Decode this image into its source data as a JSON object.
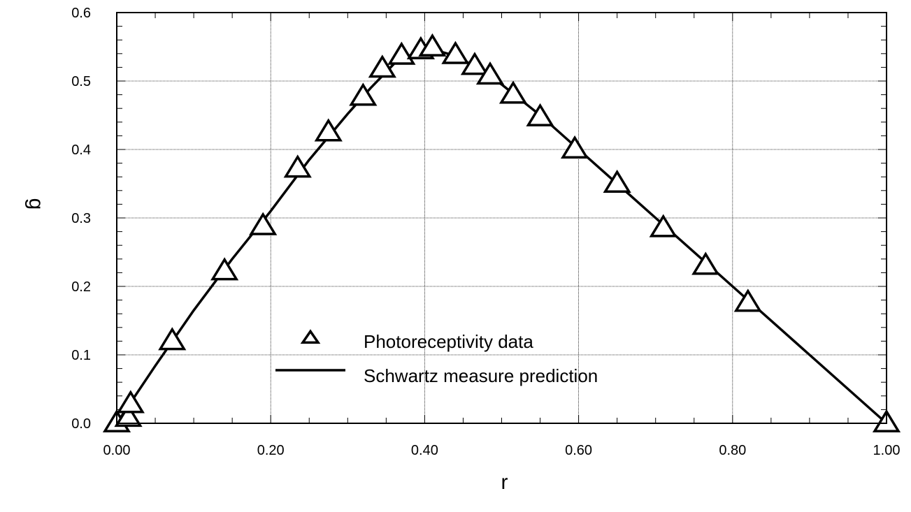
{
  "chart_data": {
    "type": "line",
    "title": "",
    "xlabel": "r",
    "ylabel": "g",
    "xlim": [
      0,
      1.0
    ],
    "ylim": [
      0,
      0.6
    ],
    "grid": true,
    "legend_position": "center-left",
    "x_ticks": [
      "0.00",
      "0.20",
      "0.40",
      "0.60",
      "0.80",
      "1.00"
    ],
    "y_ticks": [
      "0.0",
      "0.1",
      "0.2",
      "0.3",
      "0.4",
      "0.5",
      "0.6"
    ],
    "series": [
      {
        "name": "Photoreceptivity data",
        "kind": "scatter",
        "marker": "triangle-open",
        "color": "#000000",
        "points": [
          [
            0.0,
            0.0
          ],
          [
            0.015,
            0.008
          ],
          [
            0.018,
            0.028
          ],
          [
            0.072,
            0.12
          ],
          [
            0.14,
            0.222
          ],
          [
            0.19,
            0.288
          ],
          [
            0.235,
            0.372
          ],
          [
            0.275,
            0.425
          ],
          [
            0.32,
            0.477
          ],
          [
            0.345,
            0.518
          ],
          [
            0.37,
            0.537
          ],
          [
            0.395,
            0.545
          ],
          [
            0.41,
            0.549
          ],
          [
            0.44,
            0.538
          ],
          [
            0.465,
            0.522
          ],
          [
            0.485,
            0.508
          ],
          [
            0.515,
            0.48
          ],
          [
            0.55,
            0.447
          ],
          [
            0.595,
            0.4
          ],
          [
            0.65,
            0.35
          ],
          [
            0.71,
            0.285
          ],
          [
            0.765,
            0.23
          ],
          [
            0.82,
            0.176
          ],
          [
            1.0,
            0.0
          ]
        ]
      },
      {
        "name": "Schwartz measure prediction",
        "kind": "line",
        "color": "#000000",
        "points": [
          [
            0.0,
            0.0
          ],
          [
            0.05,
            0.084
          ],
          [
            0.1,
            0.165
          ],
          [
            0.15,
            0.24
          ],
          [
            0.2,
            0.31
          ],
          [
            0.25,
            0.385
          ],
          [
            0.3,
            0.452
          ],
          [
            0.33,
            0.49
          ],
          [
            0.36,
            0.525
          ],
          [
            0.39,
            0.543
          ],
          [
            0.41,
            0.546
          ],
          [
            0.43,
            0.54
          ],
          [
            0.46,
            0.525
          ],
          [
            0.5,
            0.495
          ],
          [
            0.55,
            0.45
          ],
          [
            0.6,
            0.4
          ],
          [
            0.7,
            0.3
          ],
          [
            0.8,
            0.2
          ],
          [
            0.9,
            0.1
          ],
          [
            1.0,
            0.0
          ]
        ]
      }
    ]
  }
}
